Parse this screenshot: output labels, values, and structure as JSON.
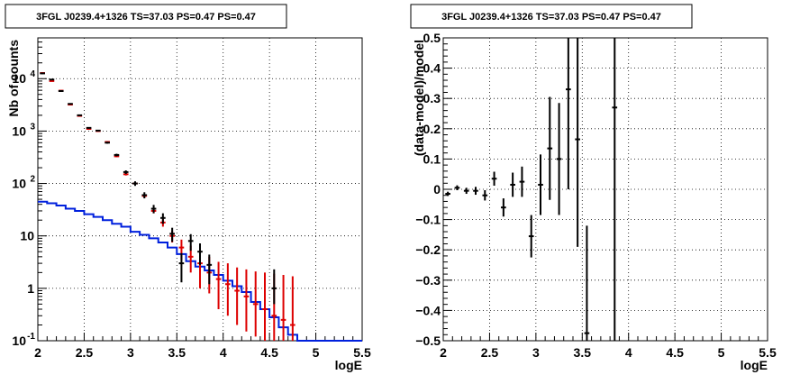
{
  "colors": {
    "data": "#000000",
    "model": "#dd0000",
    "component": "#0020dd",
    "grid": "#000000"
  },
  "chart_data": [
    {
      "type": "line",
      "title": "3FGL J0239.4+1326 TS=37.03 PS=0.47 PS=0.47",
      "xlabel": "logE",
      "ylabel": "Nb of counts",
      "xlim": [
        2,
        5.5
      ],
      "ylim": [
        0.1,
        60000
      ],
      "yscale": "log",
      "grid": true,
      "xticks": [
        "2",
        "2.5",
        "3",
        "3.5",
        "4",
        "4.5",
        "5",
        "5.5"
      ],
      "yticks": [
        {
          "v": 0.1,
          "t": "10",
          "sup": "-1"
        },
        {
          "v": 1,
          "t": "1",
          "sup": ""
        },
        {
          "v": 10,
          "t": "10",
          "sup": ""
        },
        {
          "v": 100,
          "t": "10",
          "sup": "2"
        },
        {
          "v": 1000,
          "t": "10",
          "sup": "3"
        },
        {
          "v": 10000,
          "t": "10",
          "sup": "4"
        }
      ],
      "bin_width": 0.1,
      "series": [
        {
          "role": "data",
          "color": "#000000",
          "x": [
            2.05,
            2.15,
            2.25,
            2.35,
            2.45,
            2.55,
            2.65,
            2.75,
            2.85,
            2.95,
            3.05,
            3.15,
            3.25,
            3.35,
            3.45,
            3.55,
            3.65,
            3.75,
            3.85,
            4.55
          ],
          "y": [
            12600,
            9600,
            5800,
            3300,
            2000,
            1150,
            1020,
            600,
            350,
            165,
            100,
            60,
            33,
            22,
            11,
            3,
            8,
            5,
            2.8,
            1
          ],
          "yerr_lo": [
            12200,
            9400,
            5700,
            3240,
            1955,
            1117,
            988,
            575,
            331,
            152,
            90,
            52,
            27,
            17,
            7.7,
            1.3,
            5.2,
            2.8,
            1.2,
            0.5
          ],
          "yerr_hi": [
            13000,
            9800,
            5900,
            3360,
            2045,
            1183,
            1052,
            625,
            369,
            178,
            110,
            68,
            39,
            27,
            14.3,
            4.7,
            10.8,
            7.2,
            4.4,
            2.3
          ]
        },
        {
          "role": "model",
          "color": "#dd0000",
          "x": [
            2.05,
            2.15,
            2.25,
            2.35,
            2.45,
            2.55,
            2.65,
            2.75,
            2.85,
            2.95,
            3.05,
            3.15,
            3.25,
            3.35,
            3.45,
            3.55,
            3.65,
            3.75,
            3.85,
            3.95,
            4.05,
            4.15,
            4.25,
            4.35,
            4.45,
            4.55,
            4.65,
            4.75
          ],
          "y": [
            12800,
            9000,
            5900,
            3200,
            1950,
            1100,
            1000,
            620,
            330,
            150,
            100,
            58,
            30,
            18,
            10,
            6,
            4,
            3,
            2,
            1.5,
            1.2,
            0.9,
            0.7,
            0.5,
            0.4,
            0.3,
            0.25,
            0.2
          ],
          "yerr_lo": [
            12600,
            8800,
            5800,
            3100,
            1900,
            1070,
            970,
            600,
            318,
            142,
            94,
            54,
            27,
            15,
            7.5,
            3.5,
            2,
            1,
            0.8,
            0.4,
            0.3,
            0.2,
            0.15,
            0.12,
            0.1,
            0.1,
            0.1,
            0.1
          ],
          "yerr_hi": [
            13000,
            9200,
            6000,
            3300,
            2000,
            1130,
            1030,
            640,
            342,
            158,
            106,
            62,
            33,
            21,
            12.5,
            8.5,
            6.5,
            5,
            4,
            3.2,
            3,
            2.5,
            2.3,
            2.1,
            2,
            1.9,
            1.8,
            1.7
          ]
        },
        {
          "role": "component",
          "color": "#0020dd",
          "edges": [
            2.0,
            2.1,
            2.2,
            2.3,
            2.4,
            2.5,
            2.6,
            2.7,
            2.8,
            2.9,
            3.0,
            3.1,
            3.2,
            3.3,
            3.4,
            3.5,
            3.6,
            3.7,
            3.8,
            3.9,
            4.0,
            4.1,
            4.2,
            4.3,
            4.4,
            4.5,
            4.6,
            4.7,
            4.8,
            4.9,
            5.0,
            5.1,
            5.2,
            5.3,
            5.4,
            5.5
          ],
          "values": [
            45,
            42,
            38,
            33,
            30,
            26,
            23,
            20,
            17,
            15,
            12,
            10.5,
            9,
            7.5,
            6,
            4.5,
            3.3,
            2.6,
            2.2,
            1.8,
            1.4,
            1.1,
            0.85,
            0.55,
            0.4,
            0.28,
            0.18,
            0.13,
            0.1,
            0.1,
            0.1,
            0.1,
            0.1,
            0.1,
            0.1
          ]
        }
      ]
    },
    {
      "type": "scatter",
      "title": "3FGL J0239.4+1326 TS=37.03 PS=0.47 PS=0.47",
      "xlabel": "logE",
      "ylabel": "(data-model)/model",
      "xlim": [
        2,
        5.5
      ],
      "ylim": [
        -0.5,
        0.5
      ],
      "grid": true,
      "xticks": [
        "2",
        "2.5",
        "3",
        "3.5",
        "4",
        "4.5",
        "5",
        "5.5"
      ],
      "yticks": [
        "−0.5",
        "−0.4",
        "−0.3",
        "−0.2",
        "−0.1",
        "0",
        "0.1",
        "0.2",
        "0.3",
        "0.4",
        "0.5"
      ],
      "bin_width": 0.1,
      "series": [
        {
          "role": "residual",
          "color": "#000000",
          "x": [
            2.05,
            2.15,
            2.25,
            2.35,
            2.45,
            2.55,
            2.65,
            2.75,
            2.85,
            2.95,
            3.05,
            3.15,
            3.25,
            3.35,
            3.45,
            3.55,
            3.85
          ],
          "y": [
            -0.015,
            0.005,
            -0.005,
            -0.005,
            -0.02,
            0.035,
            -0.06,
            0.015,
            0.025,
            -0.155,
            0.015,
            0.135,
            0.1,
            0.33,
            0.165,
            -0.475,
            0.27
          ],
          "yerr_lo": [
            -0.022,
            -0.003,
            -0.015,
            -0.018,
            -0.037,
            0.012,
            -0.09,
            -0.025,
            -0.025,
            -0.225,
            -0.085,
            -0.035,
            -0.085,
            0.0,
            -0.19,
            -0.5,
            -0.5
          ],
          "yerr_hi": [
            -0.008,
            0.013,
            0.005,
            0.008,
            -0.003,
            0.058,
            -0.03,
            0.055,
            0.075,
            -0.085,
            0.115,
            0.305,
            0.285,
            0.5,
            0.5,
            -0.12,
            0.5
          ]
        }
      ]
    }
  ]
}
